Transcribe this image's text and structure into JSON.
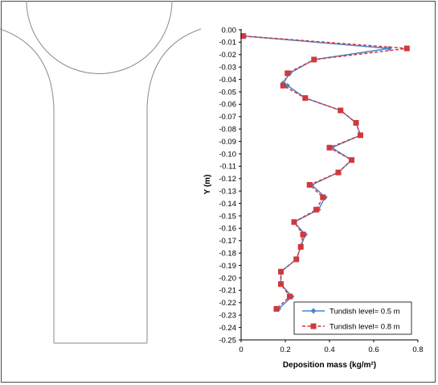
{
  "chart_data": {
    "type": "line",
    "xlabel": "Deposition mass (kg/m²)",
    "ylabel": "Y (m)",
    "xlim": [
      0,
      0.8
    ],
    "ylim": [
      -0.25,
      0.0
    ],
    "x_ticks": [
      "0",
      "0.2",
      "0.4",
      "0.6",
      "0.8"
    ],
    "y_ticks": [
      "0.00",
      "-0.01",
      "-0.02",
      "-0.03",
      "-0.04",
      "-0.05",
      "-0.06",
      "-0.07",
      "-0.08",
      "-0.09",
      "-0.10",
      "-0.11",
      "-0.12",
      "-0.13",
      "-0.14",
      "-0.15",
      "-0.16",
      "-0.17",
      "-0.18",
      "-0.19",
      "-0.20",
      "-0.21",
      "-0.22",
      "-0.23",
      "-0.24",
      "-0.25"
    ],
    "grid": false,
    "legend_position": "bottom-right",
    "series": [
      {
        "name": "Tundish level= 0.5 m",
        "color": "#4a86c8",
        "line_style": "solid",
        "marker": "diamond",
        "points": [
          {
            "x": 0.01,
            "y": -0.005
          },
          {
            "x": 0.67,
            "y": -0.015
          },
          {
            "x": 0.33,
            "y": -0.024
          },
          {
            "x": 0.22,
            "y": -0.035
          },
          {
            "x": 0.19,
            "y": -0.043
          },
          {
            "x": 0.21,
            "y": -0.045
          },
          {
            "x": 0.29,
            "y": -0.055
          },
          {
            "x": 0.45,
            "y": -0.065
          },
          {
            "x": 0.52,
            "y": -0.075
          },
          {
            "x": 0.54,
            "y": -0.085
          },
          {
            "x": 0.41,
            "y": -0.095
          },
          {
            "x": 0.5,
            "y": -0.105
          },
          {
            "x": 0.44,
            "y": -0.115
          },
          {
            "x": 0.32,
            "y": -0.125
          },
          {
            "x": 0.38,
            "y": -0.135
          },
          {
            "x": 0.35,
            "y": -0.145
          },
          {
            "x": 0.24,
            "y": -0.155
          },
          {
            "x": 0.29,
            "y": -0.165
          },
          {
            "x": 0.27,
            "y": -0.175
          },
          {
            "x": 0.25,
            "y": -0.185
          },
          {
            "x": 0.18,
            "y": -0.195
          },
          {
            "x": 0.18,
            "y": -0.205
          },
          {
            "x": 0.23,
            "y": -0.215
          },
          {
            "x": 0.17,
            "y": -0.225
          }
        ]
      },
      {
        "name": "Tundish level= 0.8 m",
        "color": "#d0393d",
        "line_style": "dashed",
        "marker": "square",
        "points": [
          {
            "x": 0.01,
            "y": -0.005
          },
          {
            "x": 0.75,
            "y": -0.015
          },
          {
            "x": 0.33,
            "y": -0.024
          },
          {
            "x": 0.21,
            "y": -0.035
          },
          {
            "x": 0.19,
            "y": -0.045
          },
          {
            "x": 0.29,
            "y": -0.055
          },
          {
            "x": 0.45,
            "y": -0.065
          },
          {
            "x": 0.52,
            "y": -0.075
          },
          {
            "x": 0.54,
            "y": -0.085
          },
          {
            "x": 0.4,
            "y": -0.095
          },
          {
            "x": 0.5,
            "y": -0.105
          },
          {
            "x": 0.44,
            "y": -0.115
          },
          {
            "x": 0.31,
            "y": -0.125
          },
          {
            "x": 0.37,
            "y": -0.135
          },
          {
            "x": 0.34,
            "y": -0.145
          },
          {
            "x": 0.24,
            "y": -0.155
          },
          {
            "x": 0.28,
            "y": -0.165
          },
          {
            "x": 0.27,
            "y": -0.175
          },
          {
            "x": 0.25,
            "y": -0.185
          },
          {
            "x": 0.18,
            "y": -0.195
          },
          {
            "x": 0.18,
            "y": -0.205
          },
          {
            "x": 0.22,
            "y": -0.215
          },
          {
            "x": 0.16,
            "y": -0.225
          }
        ]
      }
    ]
  },
  "diagram": {
    "stroke_color": "#8a8a8a"
  }
}
